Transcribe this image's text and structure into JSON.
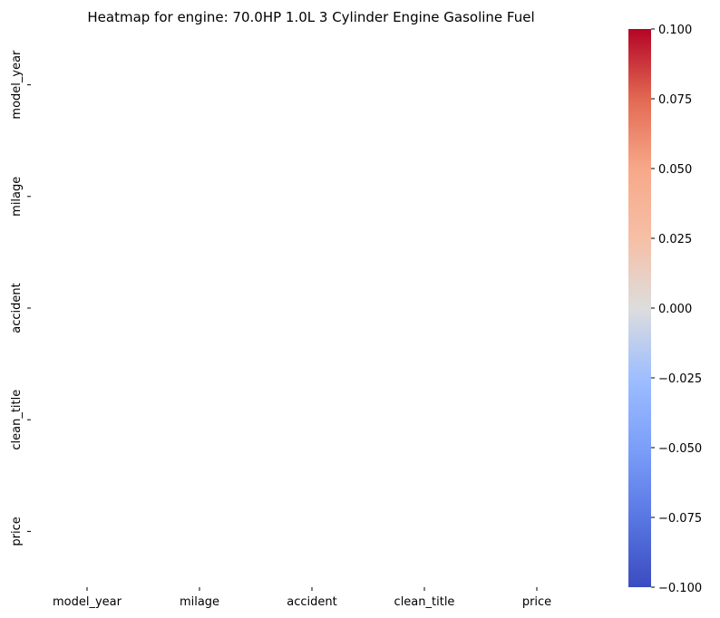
{
  "chart_data": {
    "type": "heatmap",
    "title": "Heatmap for engine: 70.0HP 1.0L 3 Cylinder Engine Gasoline Fuel",
    "row_labels": [
      "model_year",
      "milage",
      "accident",
      "clean_title",
      "price"
    ],
    "col_labels": [
      "model_year",
      "milage",
      "accident",
      "clean_title",
      "price"
    ],
    "values": [
      [
        null,
        null,
        null,
        null,
        null
      ],
      [
        null,
        null,
        null,
        null,
        null
      ],
      [
        null,
        null,
        null,
        null,
        null
      ],
      [
        null,
        null,
        null,
        null,
        null
      ],
      [
        null,
        null,
        null,
        null,
        null
      ]
    ],
    "colormap": "coolwarm",
    "colorbar": {
      "vmin": -0.1,
      "vmax": 0.1,
      "ticks": [
        -0.1,
        -0.075,
        -0.05,
        -0.025,
        0.0,
        0.025,
        0.05,
        0.075,
        0.1
      ],
      "tick_labels": [
        "−0.100",
        "−0.075",
        "−0.050",
        "−0.025",
        "0.000",
        "0.025",
        "0.050",
        "0.075",
        "0.100"
      ]
    },
    "colors": {
      "low": "#3b4cc0",
      "mid": "#dddddd",
      "high": "#b40426"
    }
  }
}
